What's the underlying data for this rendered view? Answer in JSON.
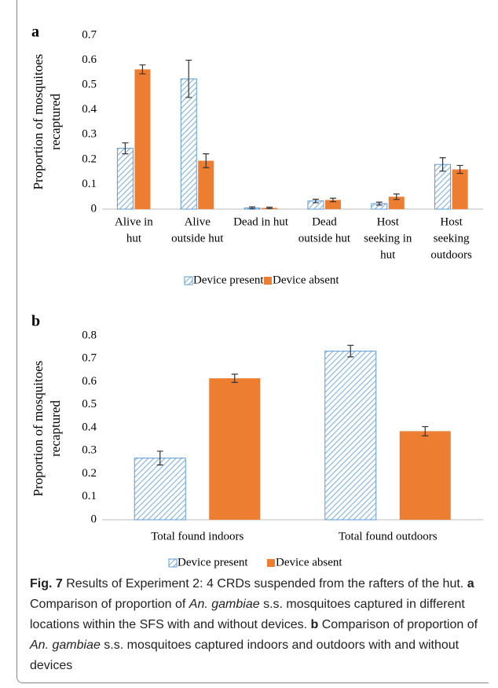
{
  "chart_data": [
    {
      "type": "bar",
      "panel": "a",
      "y_label": [
        "Proportion of mosquitoes",
        "recaptured"
      ],
      "categories": [
        [
          "Alive in",
          "hut"
        ],
        [
          "Alive",
          "outside hut"
        ],
        [
          "Dead in hut"
        ],
        [
          "Dead",
          "outside hut"
        ],
        [
          "Host",
          "seeking in",
          "hut"
        ],
        [
          "Host",
          "seeking",
          "outdoors"
        ]
      ],
      "series": [
        {
          "name": "Device present",
          "color": "#5b9bd5",
          "hatched": true,
          "values": [
            0.245,
            0.525,
            0.005,
            0.033,
            0.022,
            0.18
          ],
          "errors": [
            0.022,
            0.075,
            0.004,
            0.007,
            0.006,
            0.027
          ]
        },
        {
          "name": "Device absent",
          "color": "#ed7d31",
          "hatched": false,
          "values": [
            0.563,
            0.195,
            0.005,
            0.037,
            0.05,
            0.16
          ],
          "errors": [
            0.018,
            0.028,
            0.003,
            0.007,
            0.011,
            0.016
          ]
        }
      ],
      "ylim": [
        0,
        0.7
      ],
      "yticks": [
        0,
        0.1,
        0.2,
        0.3,
        0.4,
        0.5,
        0.6,
        0.7
      ],
      "grid": false,
      "legend": "bottom"
    },
    {
      "type": "bar",
      "panel": "b",
      "y_label": [
        "Proportion of mosquitoes",
        "recaptured"
      ],
      "categories": [
        [
          "Total found indoors"
        ],
        [
          "Total found outdoors"
        ]
      ],
      "series": [
        {
          "name": "Device present",
          "color": "#5b9bd5",
          "hatched": true,
          "values": [
            0.268,
            0.733
          ],
          "errors": [
            0.03,
            0.025
          ]
        },
        {
          "name": "Device absent",
          "color": "#ed7d31",
          "hatched": false,
          "values": [
            0.615,
            0.385
          ],
          "errors": [
            0.018,
            0.02
          ]
        }
      ],
      "ylim": [
        0,
        0.8
      ],
      "yticks": [
        0,
        0.1,
        0.2,
        0.3,
        0.4,
        0.5,
        0.6,
        0.7,
        0.8
      ],
      "grid": false,
      "legend": "bottom"
    }
  ],
  "caption": [
    "Fig. 7",
    " Results of Experiment 2: 4 CRDs suspended from the rafters of the hut. ",
    "a",
    " Comparison of proportion of ",
    "An. gambiae",
    " s.s. mosquitoes captured in different locations within the SFS with and without devices. ",
    "b",
    " Comparison of proportion of ",
    "An. gambiae",
    " s.s. mosquitoes captured indoors and outdoors with and without devices"
  ]
}
